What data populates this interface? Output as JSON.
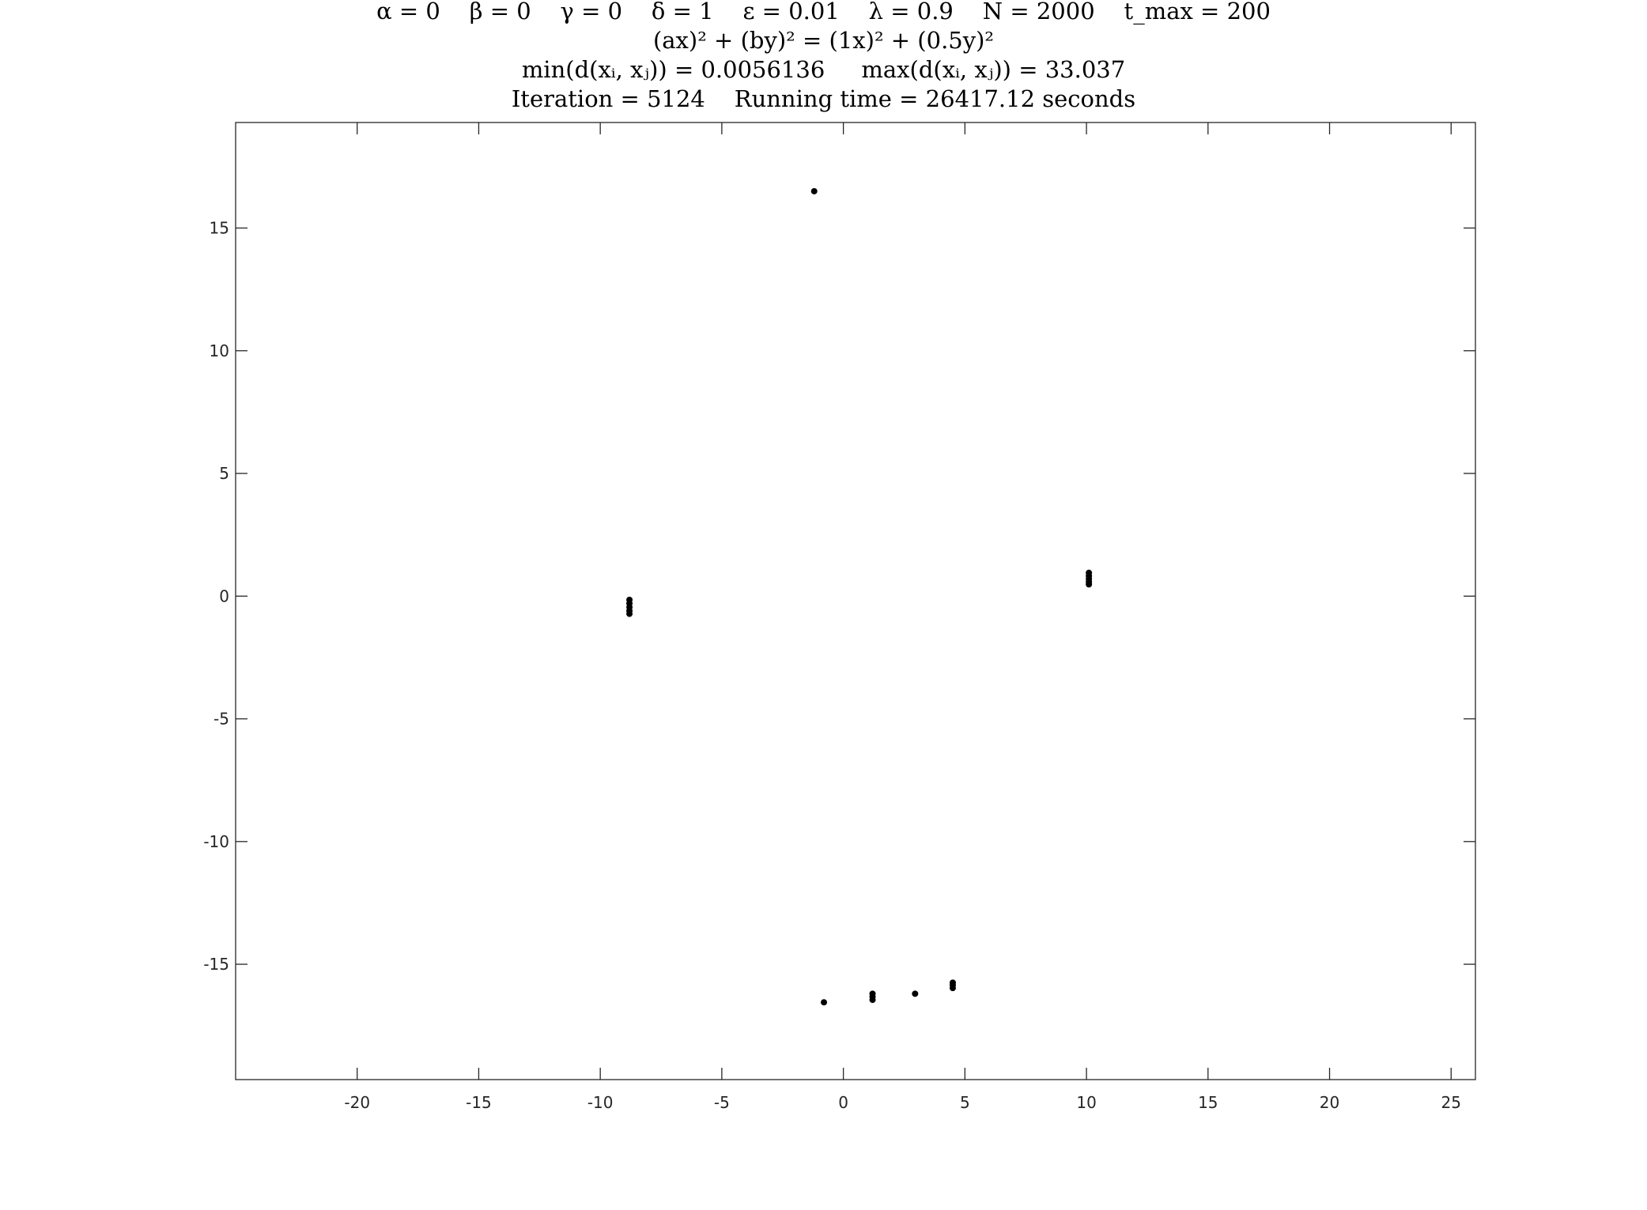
{
  "title_lines": [
    "α = 0    β = 0    γ = 0    δ = 1    ε = 0.01    λ = 0.9    N = 2000    t_max = 200",
    "(ax)² + (by)² = (1x)² + (0.5y)²",
    "min(d(xᵢ, xⱼ)) = 0.0056136     max(d(xᵢ, xⱼ)) = 33.037",
    "Iteration = 5124    Running time = 26417.12 seconds"
  ],
  "chart_data": {
    "type": "scatter",
    "title": "α = 0 β = 0 γ = 0 δ = 1 ε = 0.01 λ = 0.9 N = 2000 t_max = 200 / (ax)² + (by)² = (1x)² + (0.5y)² / min(d(xᵢ, xⱼ)) = 0.0056136 max(d(xᵢ, xⱼ)) = 33.037 / Iteration = 5124 Running time = 26417.12 seconds",
    "xlabel": "",
    "ylabel": "",
    "xlim": [
      -25,
      26
    ],
    "ylim": [
      -19.7,
      19.3
    ],
    "xticks": [
      -20,
      -15,
      -10,
      -5,
      0,
      5,
      10,
      15,
      20,
      25
    ],
    "yticks": [
      -15,
      -10,
      -5,
      0,
      5,
      10,
      15
    ],
    "grid": false,
    "legend": "none",
    "marker_color": "#000000",
    "points": [
      {
        "x": -1.2,
        "y": 16.5
      },
      {
        "x": -8.8,
        "y": -0.15
      },
      {
        "x": -8.8,
        "y": -0.3
      },
      {
        "x": -8.8,
        "y": -0.45
      },
      {
        "x": -8.8,
        "y": -0.6
      },
      {
        "x": -8.8,
        "y": -0.72
      },
      {
        "x": 10.1,
        "y": 0.95
      },
      {
        "x": 10.1,
        "y": 0.82
      },
      {
        "x": 10.1,
        "y": 0.7
      },
      {
        "x": 10.1,
        "y": 0.58
      },
      {
        "x": 10.1,
        "y": 0.48
      },
      {
        "x": -0.8,
        "y": -16.55
      },
      {
        "x": 1.2,
        "y": -16.2
      },
      {
        "x": 1.2,
        "y": -16.32
      },
      {
        "x": 1.2,
        "y": -16.45
      },
      {
        "x": 2.95,
        "y": -16.2
      },
      {
        "x": 4.5,
        "y": -15.75
      },
      {
        "x": 4.5,
        "y": -15.85
      },
      {
        "x": 4.5,
        "y": -15.97
      }
    ]
  }
}
